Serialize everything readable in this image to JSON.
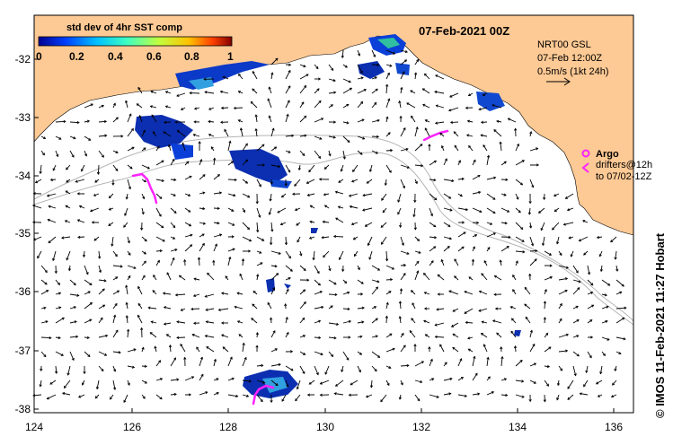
{
  "map": {
    "date_label": "07-Feb-2021 00Z",
    "lon_ticks": [
      "124",
      "126",
      "128",
      "130",
      "132",
      "134",
      "136"
    ],
    "lat_ticks": [
      "-32",
      "-33",
      "-34",
      "-35",
      "-36",
      "-37",
      "-38"
    ],
    "credit": "© IMOS 11-Feb-2021 11:27 Hobart",
    "colors": {
      "land": "#fdc994",
      "ocean": "#ffffff",
      "argo": "#ff22ff",
      "contour": "#b4b4b4"
    }
  },
  "colorbar": {
    "title": "std dev of 4hr SST comp",
    "ticks": [
      "0",
      "0.2",
      "0.4",
      "0.6",
      "0.8",
      "1"
    ],
    "colors": [
      "#00008f",
      "#0040ff",
      "#00c0ff",
      "#40ffbf",
      "#c0ff40",
      "#ffc000",
      "#ff4000",
      "#800000"
    ]
  },
  "current_legend": {
    "line1": "NRT00 GSL",
    "line2": "07-Feb 12:00Z",
    "line3": "0.5m/s (1kt 24h)"
  },
  "argo_legend": {
    "label": "Argo",
    "drifters_line1": "drifters@12h",
    "drifters_line2": "to 07/02-12Z"
  }
}
